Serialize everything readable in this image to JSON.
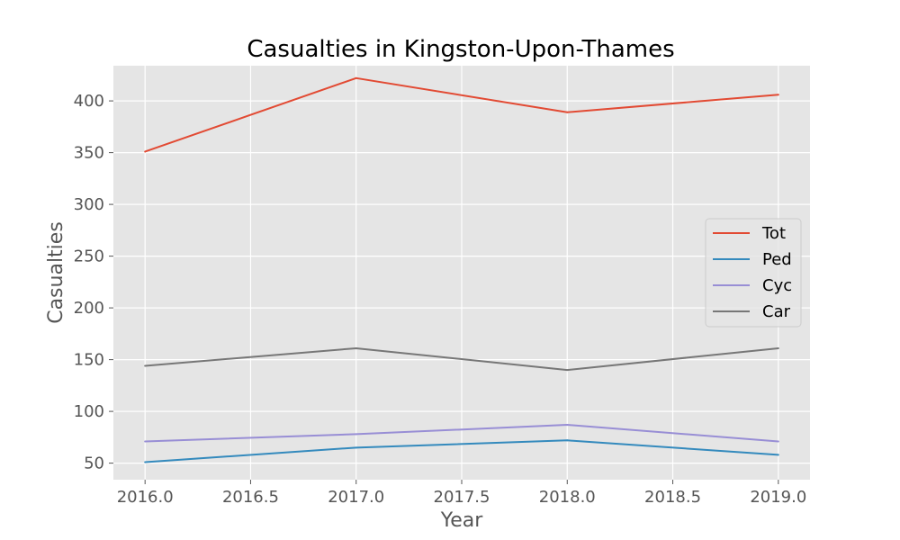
{
  "chart_data": {
    "type": "line",
    "title": "Casualties in Kingston-Upon-Thames",
    "xlabel": "Year",
    "ylabel": "Casualties",
    "x": [
      2016,
      2017,
      2018,
      2019
    ],
    "xlim": [
      2015.85,
      2019.15
    ],
    "ylim": [
      34,
      434
    ],
    "xticks": [
      2016.0,
      2016.5,
      2017.0,
      2017.5,
      2018.0,
      2018.5,
      2019.0
    ],
    "xtick_labels": [
      "2016.0",
      "2016.5",
      "2017.0",
      "2017.5",
      "2018.0",
      "2018.5",
      "2019.0"
    ],
    "yticks": [
      50,
      100,
      150,
      200,
      250,
      300,
      350,
      400
    ],
    "ytick_labels": [
      "50",
      "100",
      "150",
      "200",
      "250",
      "300",
      "350",
      "400"
    ],
    "grid": true,
    "legend_position": "center-right",
    "series": [
      {
        "name": "Tot",
        "color": "#E24A33",
        "values": [
          351,
          422,
          389,
          406
        ]
      },
      {
        "name": "Ped",
        "color": "#348ABD",
        "values": [
          51,
          65,
          72,
          58
        ]
      },
      {
        "name": "Cyc",
        "color": "#988ED5",
        "values": [
          71,
          78,
          87,
          71
        ]
      },
      {
        "name": "Car",
        "color": "#777777",
        "values": [
          144,
          161,
          140,
          161
        ]
      }
    ]
  }
}
